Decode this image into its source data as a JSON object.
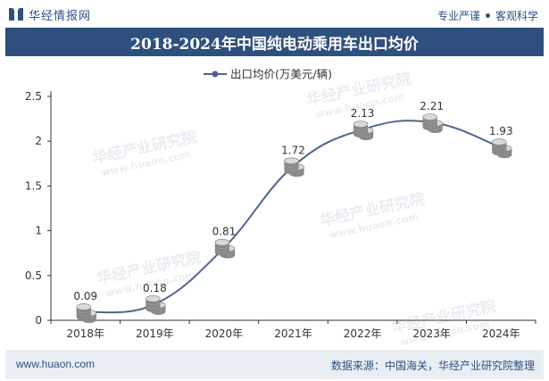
{
  "header": {
    "logo_text": "华经情报网",
    "tagline_left": "专业严谨",
    "tagline_right": "客观科学"
  },
  "title": "2018-2024年中国纯电动乘用车出口均价",
  "footer": {
    "site": "www.huaon.com",
    "source": "数据来源：中国海关，华经产业研究院整理"
  },
  "watermark": {
    "cn": "华经产业研究院",
    "en": "www.huaon.com"
  },
  "chart_data": {
    "type": "line",
    "title": "2018-2024年中国纯电动乘用车出口均价",
    "categories": [
      "2018年",
      "2019年",
      "2020年",
      "2021年",
      "2022年",
      "2023年",
      "2024年"
    ],
    "series": [
      {
        "name": "出口均价(万美元/辆)",
        "values": [
          0.09,
          0.18,
          0.81,
          1.72,
          2.13,
          2.21,
          1.93
        ],
        "labels": [
          "0.09",
          "0.18",
          "0.81",
          "1.72",
          "2.13",
          "2.21",
          "1.93"
        ],
        "color": "#4e6690"
      }
    ],
    "yticks": [
      "0",
      "0.5",
      "1",
      "1.5",
      "2",
      "2.5"
    ],
    "ylim": [
      0,
      2.5
    ],
    "grid": false,
    "legend": "top-center",
    "marker": "coin-stack"
  }
}
